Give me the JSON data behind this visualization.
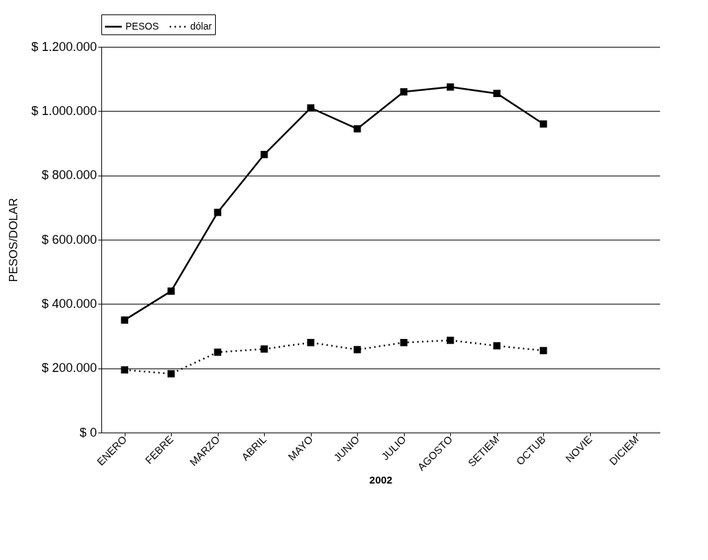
{
  "chart_data": {
    "type": "line",
    "xlabel": "2002",
    "ylabel": "PESOS/DOLAR",
    "categories": [
      "ENERO",
      "FEBRE",
      "MARZO",
      "ABRIL",
      "MAYO",
      "JUNIO",
      "JULIO",
      "AGOSTO",
      "SETIEM",
      "OCTUB",
      "NOVIE",
      "DICIEM"
    ],
    "series": [
      {
        "name": "PESOS",
        "color": "#000000",
        "line_style": "solid",
        "values": [
          350000,
          440000,
          685000,
          865000,
          1010000,
          945000,
          1060000,
          1075000,
          1055000,
          960000,
          null,
          null
        ]
      },
      {
        "name": "dólar",
        "color": "#000000",
        "line_style": "dotted",
        "values": [
          195000,
          183000,
          250000,
          260000,
          280000,
          258000,
          280000,
          287000,
          270000,
          255000,
          null,
          null
        ]
      }
    ],
    "ylim": [
      0,
      1200000
    ],
    "yticks": [
      {
        "value": 0,
        "label": "$ 0"
      },
      {
        "value": 200000,
        "label": "$ 200.000"
      },
      {
        "value": 400000,
        "label": "$ 400.000"
      },
      {
        "value": 600000,
        "label": "$ 600.000"
      },
      {
        "value": 800000,
        "label": "$ 800.000"
      },
      {
        "value": 1000000,
        "label": "$ 1.000.000"
      },
      {
        "value": 1200000,
        "label": "$ 1.200.000"
      }
    ],
    "grid": "y",
    "legend": "top",
    "marker": "square"
  }
}
